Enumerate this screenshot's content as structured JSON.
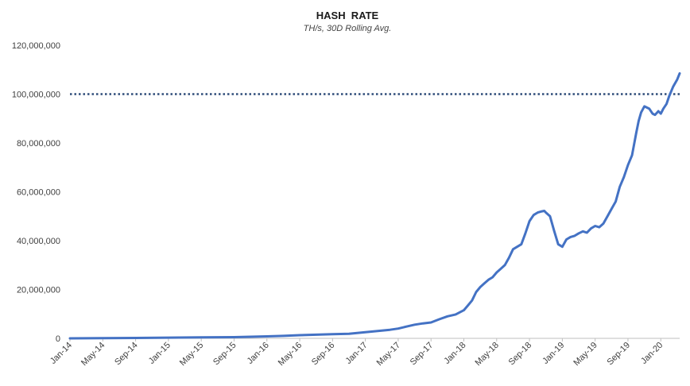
{
  "chart_data": {
    "type": "line",
    "title": "HASH  RATE",
    "subtitle": "TH/s, 30D Rolling Avg.",
    "xlabel": "",
    "ylabel": "",
    "ylim": [
      0,
      120000000
    ],
    "y_ticks": [
      0,
      20000000,
      40000000,
      60000000,
      80000000,
      100000000,
      120000000
    ],
    "y_tick_labels": [
      "0",
      "20,000,000",
      "40,000,000",
      "60,000,000",
      "80,000,000",
      "100,000,000",
      "120,000,000"
    ],
    "x_tick_labels": [
      "Jan-14",
      "May-14",
      "Sep-14",
      "Jan-15",
      "May-15",
      "Sep-15",
      "Jan-16",
      "May-16",
      "Sep-16",
      "Jan-17",
      "May-17",
      "Sep-17",
      "Jan-18",
      "May-18",
      "Sep-18",
      "Jan-19",
      "May-19",
      "Sep-19",
      "Jan-20"
    ],
    "x_unit": "months since Jan-14",
    "xlim": [
      0,
      74.3
    ],
    "grid": false,
    "reference_line": {
      "value": 100000000,
      "style": "dotted",
      "color": "#2F4D7A"
    },
    "series": [
      {
        "name": "Hash Rate",
        "color": "#4472C4",
        "x": [
          0,
          4,
          8,
          12,
          16,
          20,
          24,
          26,
          28,
          30,
          32,
          34,
          36,
          38,
          39,
          40,
          41,
          42,
          43,
          44,
          45,
          46,
          47,
          48,
          48.5,
          49,
          49.5,
          50,
          50.5,
          51,
          51.5,
          52,
          52.5,
          53,
          53.5,
          54,
          54.5,
          55,
          55.5,
          56,
          56.5,
          57,
          57.5,
          57.8,
          58,
          58.5,
          59,
          59.5,
          60,
          60.5,
          61,
          61.5,
          62,
          62.5,
          63,
          63.5,
          64,
          64.5,
          65,
          65.5,
          66,
          66.5,
          67,
          67.5,
          68,
          68.5,
          69,
          69.3,
          69.6,
          70,
          70.3,
          70.6,
          71,
          71.3,
          71.7,
          72,
          72.3,
          72.7,
          73,
          73.5,
          74,
          74.3
        ],
        "y": [
          0,
          50000,
          150000,
          300000,
          400000,
          500000,
          800000,
          1000000,
          1300000,
          1500000,
          1700000,
          1900000,
          2500000,
          3200000,
          3500000,
          4000000,
          4800000,
          5600000,
          6100000,
          6500000,
          7800000,
          9000000,
          9800000,
          11500000,
          13500000,
          15500000,
          19000000,
          21000000,
          22500000,
          24000000,
          25000000,
          27000000,
          28500000,
          30000000,
          33000000,
          36500000,
          37500000,
          38500000,
          43000000,
          48000000,
          50500000,
          51500000,
          52000000,
          52200000,
          51500000,
          50000000,
          44000000,
          38500000,
          37500000,
          40500000,
          41500000,
          42000000,
          43000000,
          43800000,
          43300000,
          45000000,
          46000000,
          45500000,
          47000000,
          50000000,
          53000000,
          56000000,
          62000000,
          66000000,
          71000000,
          75000000,
          84000000,
          89000000,
          92500000,
          95000000,
          94500000,
          94000000,
          92000000,
          91500000,
          93000000,
          92000000,
          94000000,
          96000000,
          99000000,
          103000000,
          106000000,
          108500000
        ]
      }
    ]
  }
}
